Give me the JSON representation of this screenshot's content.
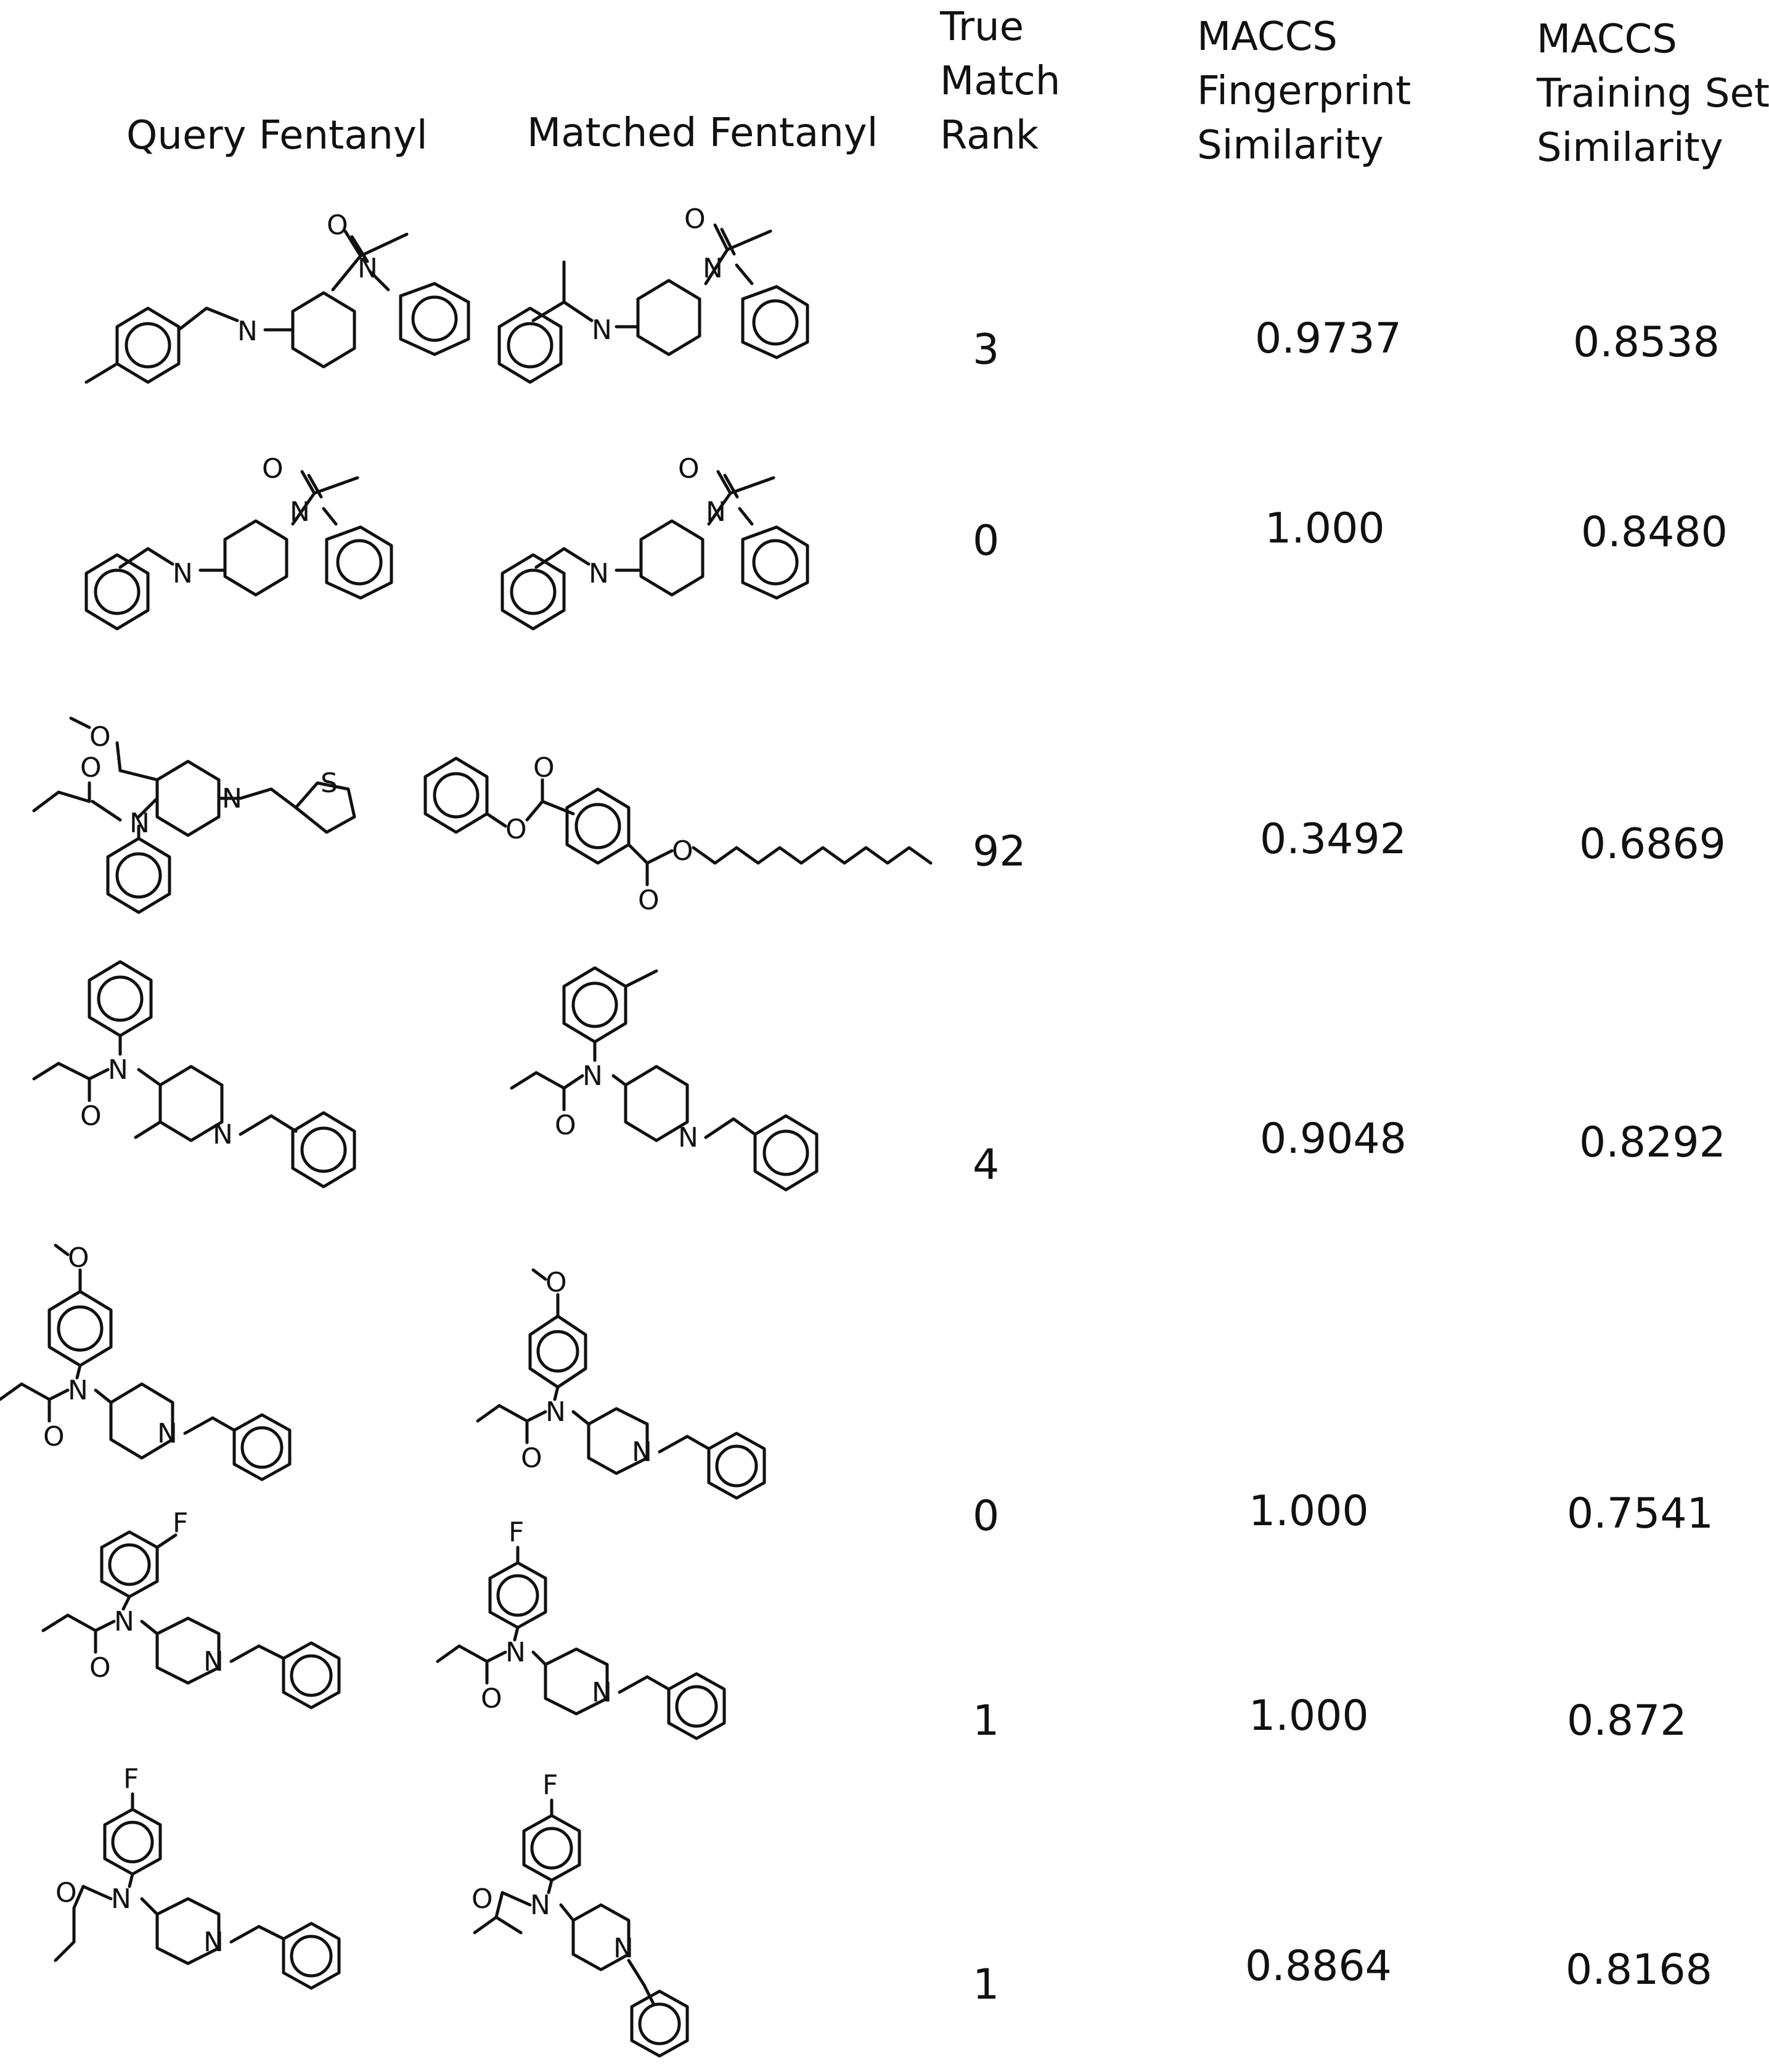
{
  "headers": {
    "query": "Query Fentanyl",
    "matched": "Matched Fentanyl",
    "rank": [
      "True",
      "Match",
      "Rank"
    ],
    "maccs_fp": [
      "MACCS",
      "Fingerprint",
      "Similarity"
    ],
    "maccs_ts": [
      "MACCS",
      "Training Set",
      "Similarity"
    ]
  },
  "rows": [
    {
      "rank": "3",
      "fp": "0.9737",
      "ts": "0.8538"
    },
    {
      "rank": "0",
      "fp": "1.000",
      "ts": "0.8480"
    },
    {
      "rank": "92",
      "fp": "0.3492",
      "ts": "0.6869"
    },
    {
      "rank": "4",
      "fp": "0.9048",
      "ts": "0.8292"
    },
    {
      "rank": "0",
      "fp": "1.000",
      "ts": "0.7541"
    },
    {
      "rank": "1",
      "fp": "1.000",
      "ts": "0.872"
    },
    {
      "rank": "1",
      "fp": "0.8864",
      "ts": "0.8168"
    }
  ],
  "atom_labels": {
    "N": "N",
    "O": "O",
    "S": "S",
    "F": "F"
  }
}
